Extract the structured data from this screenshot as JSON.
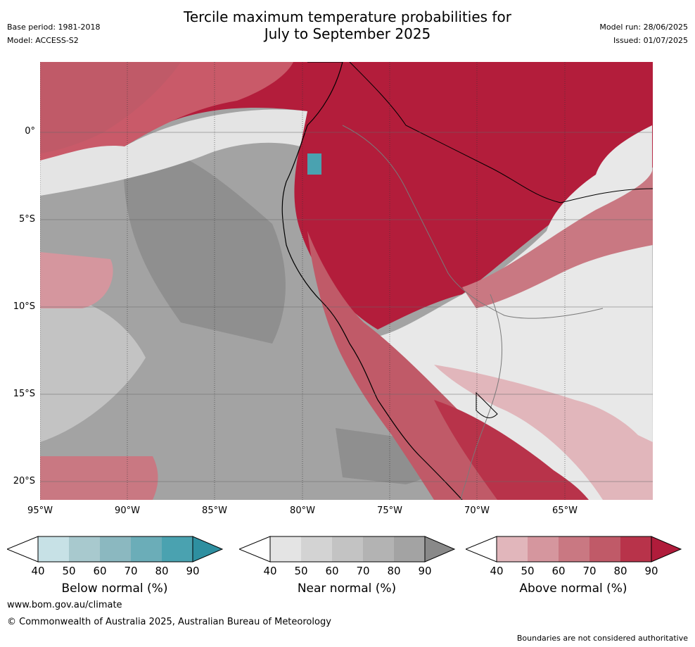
{
  "title_line1": "Tercile maximum temperature probabilities for",
  "title_line2": "July to September 2025",
  "base_period": "Base period: 1981-2018",
  "model": "Model: ACCESS-S2",
  "model_run": "Model run: 28/06/2025",
  "issued": "Issued: 01/07/2025",
  "lat_labels": [
    "0°",
    "5°S",
    "10°S",
    "15°S",
    "20°S"
  ],
  "lon_labels": [
    "95°W",
    "90°W",
    "85°W",
    "80°W",
    "75°W",
    "70°W",
    "65°W"
  ],
  "colorbars": [
    {
      "id": "below",
      "label": "Below normal (%)",
      "ticks": [
        "40",
        "50",
        "60",
        "70",
        "80",
        "90"
      ],
      "colors": [
        "#c7e1e6",
        "#a8c9ce",
        "#8bb8c0",
        "#6badb8",
        "#4aa2b0"
      ],
      "arrow_color": "#2e8fa0"
    },
    {
      "id": "near",
      "label": "Near normal (%)",
      "ticks": [
        "40",
        "50",
        "60",
        "70",
        "80",
        "90"
      ],
      "colors": [
        "#e4e4e4",
        "#d3d3d3",
        "#c3c3c3",
        "#b3b3b3",
        "#a3a3a3"
      ],
      "arrow_color": "#898989"
    },
    {
      "id": "above",
      "label": "Above normal (%)",
      "ticks": [
        "40",
        "50",
        "60",
        "70",
        "80",
        "90"
      ],
      "colors": [
        "#e1b6bb",
        "#d5969e",
        "#c97882",
        "#c05a68",
        "#b8334a"
      ],
      "arrow_color": "#b01c3b"
    }
  ],
  "website": "www.bom.gov.au/climate",
  "copyright": "© Commonwealth of Australia 2025, Australian Bureau of Meteorology",
  "disclaimer": "Boundaries are not considered authoritative"
}
